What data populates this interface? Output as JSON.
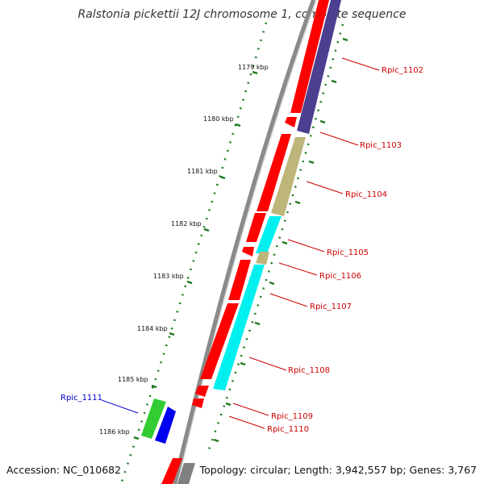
{
  "title": "Ralstonia pickettii 12J chromosome 1, complete sequence",
  "footer": {
    "accession": "Accession: NC_010682",
    "summary": "Topology: circular; Length: 3,942,557 bp; Genes: 3,767"
  },
  "colors": {
    "backbone": "#8a8a8a",
    "gene_red": "#ff0000",
    "gene_purple": "#4b3f8f",
    "gene_tan": "#bdb57a",
    "gene_cyan": "#00f0f0",
    "gene_green": "#33cc33",
    "gene_blue": "#0000ee",
    "gene_gray": "#808080",
    "ticks": "#1e7a1e",
    "label_red": "#cc0000",
    "label_blue": "#0000cc"
  },
  "ticks": [
    "1179 kbp",
    "1180 kbp",
    "1181 kbp",
    "1182 kbp",
    "1183 kbp",
    "1184 kbp",
    "1185 kbp",
    "1186 kbp"
  ],
  "genes": [
    {
      "label": "Rpic_1102",
      "color": "label_red"
    },
    {
      "label": "Rpic_1103",
      "color": "label_red"
    },
    {
      "label": "Rpic_1104",
      "color": "label_red"
    },
    {
      "label": "Rpic_1105",
      "color": "label_red"
    },
    {
      "label": "Rpic_1106",
      "color": "label_red"
    },
    {
      "label": "Rpic_1107",
      "color": "label_red"
    },
    {
      "label": "Rpic_1108",
      "color": "label_red"
    },
    {
      "label": "Rpic_1109",
      "color": "label_red"
    },
    {
      "label": "Rpic_1110",
      "color": "label_red"
    },
    {
      "label": "Rpic_1111",
      "color": "label_blue"
    }
  ]
}
